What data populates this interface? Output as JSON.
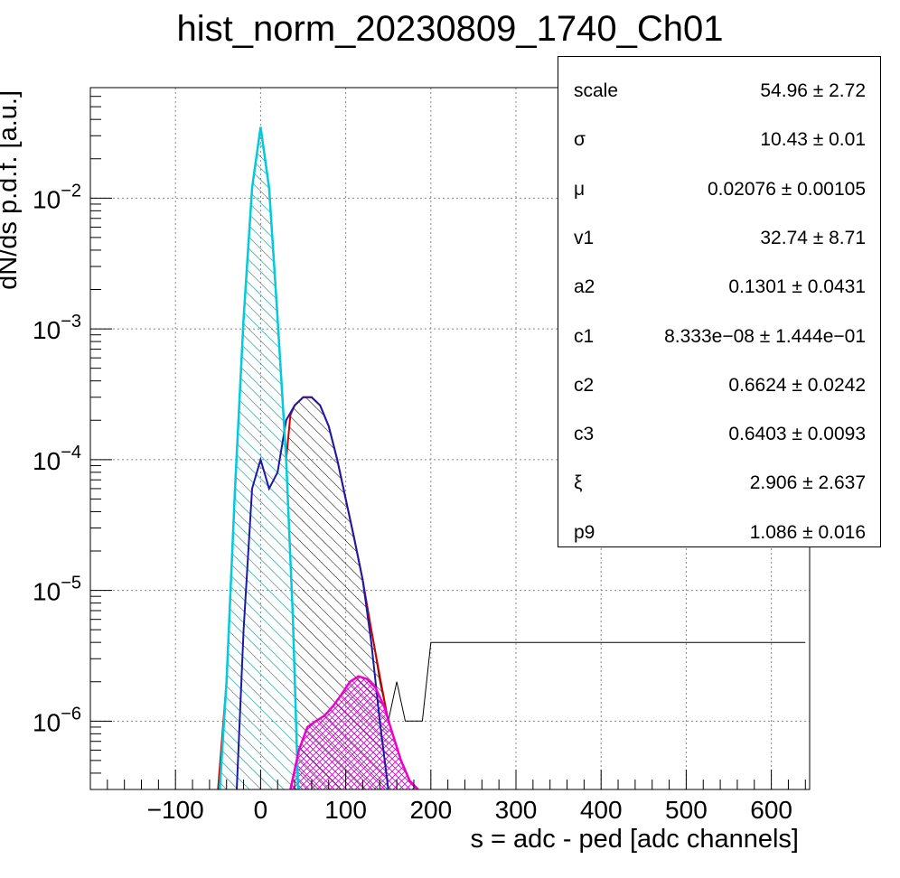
{
  "chart_data": {
    "type": "histogram",
    "title": "hist_norm_20230809_1740_Ch01",
    "xlabel": "s = adc - ped [adc channels]",
    "ylabel": "dN/ds p.d.f. [a.u.]",
    "xlim": [
      -200,
      645
    ],
    "ylim": [
      3e-07,
      0.07
    ],
    "y_scale": "log",
    "grid": true,
    "x_ticks": [
      -100,
      0,
      100,
      200,
      300,
      400,
      500,
      600
    ],
    "x_tick_labels": [
      "−100",
      "0",
      "100",
      "200",
      "300",
      "400",
      "500",
      "600"
    ],
    "y_ticks": [
      1e-06,
      1e-05,
      0.0001,
      0.001,
      0.01
    ],
    "y_tick_labels": [
      {
        "base": "10",
        "exp": "−6"
      },
      {
        "base": "10",
        "exp": "−5"
      },
      {
        "base": "10",
        "exp": "−4"
      },
      {
        "base": "10",
        "exp": "−3"
      },
      {
        "base": "10",
        "exp": "−2"
      }
    ],
    "series": [
      {
        "color": "#000000",
        "style": "histogram",
        "x": [
          -50,
          -40,
          -30,
          -20,
          -10,
          0,
          10,
          20,
          30,
          35,
          40,
          50,
          60,
          70,
          80,
          90,
          100,
          110,
          120,
          130,
          140,
          150,
          160,
          170,
          180,
          190,
          200,
          250,
          300,
          350,
          400,
          500,
          600,
          640
        ],
        "y": [
          3e-07,
          2e-06,
          6e-05,
          0.0012,
          0.012,
          0.035,
          0.012,
          0.0012,
          0.0001,
          0.00022,
          0.00026,
          0.0003,
          0.0003,
          0.00026,
          0.00018,
          0.0001,
          5e-05,
          2.5e-05,
          1.2e-05,
          5e-06,
          2e-06,
          1e-06,
          2e-06,
          1e-06,
          1e-06,
          1e-06,
          4e-06,
          4e-06,
          4e-06,
          4e-06,
          4e-06,
          4e-06,
          4e-06,
          4e-06
        ]
      },
      {
        "color": "#cc0000",
        "style": "fit-total",
        "x": [
          -50,
          -40,
          -30,
          -20,
          -10,
          0,
          10,
          20,
          30,
          35,
          40,
          50,
          60,
          70,
          80,
          90,
          100,
          110,
          120,
          130,
          140,
          150
        ],
        "y": [
          3e-07,
          2e-06,
          6e-05,
          0.0012,
          0.012,
          0.035,
          0.012,
          0.0012,
          0.0001,
          0.00022,
          0.00026,
          0.0003,
          0.0003,
          0.00026,
          0.00018,
          0.0001,
          5e-05,
          2.5e-05,
          1.2e-05,
          5e-06,
          2.2e-06,
          1e-06
        ]
      },
      {
        "color": "#00ccdd",
        "style": "pedestal-component",
        "x": [
          -48,
          -40,
          -30,
          -20,
          -10,
          0,
          10,
          20,
          30,
          38,
          44
        ],
        "y": [
          3e-07,
          2e-06,
          6e-05,
          0.0012,
          0.012,
          0.035,
          0.012,
          0.0012,
          0.0001,
          6e-06,
          3e-07
        ]
      },
      {
        "color": "#1a1aaa",
        "style": "single-pe-component",
        "x": [
          -28,
          -20,
          -10,
          0,
          10,
          20,
          30,
          40,
          50,
          60,
          70,
          80,
          90,
          100,
          110,
          120,
          130,
          140,
          150
        ],
        "y": [
          3e-07,
          5e-06,
          6e-05,
          0.0001,
          6e-05,
          8e-05,
          0.0002,
          0.00026,
          0.0003,
          0.0003,
          0.00026,
          0.00018,
          0.0001,
          5e-05,
          2.5e-05,
          1.2e-05,
          4e-06,
          1e-06,
          3e-07
        ]
      },
      {
        "color": "#ee00cc",
        "style": "double-pe-component",
        "x": [
          35,
          45,
          55,
          65,
          75,
          85,
          95,
          105,
          115,
          125,
          135,
          145,
          155,
          165,
          175,
          185
        ],
        "y": [
          3e-07,
          6e-07,
          9e-07,
          1e-06,
          1.1e-06,
          1.3e-06,
          1.6e-06,
          2e-06,
          2.2e-06,
          2.1e-06,
          1.8e-06,
          1.3e-06,
          8e-07,
          5e-07,
          3.5e-07,
          3e-07
        ]
      }
    ],
    "stats_box": [
      {
        "name": "scale",
        "value": "54.96 ± 2.72"
      },
      {
        "name": "σ",
        "value": "10.43 ± 0.01"
      },
      {
        "name": "μ",
        "value": "0.02076 ± 0.00105"
      },
      {
        "name": "v1",
        "value": "32.74 ± 8.71"
      },
      {
        "name": "a2",
        "value": "0.1301 ± 0.0431"
      },
      {
        "name": "c1",
        "value": "8.333e−08 ± 1.444e−01"
      },
      {
        "name": "c2",
        "value": "0.6624 ± 0.0242"
      },
      {
        "name": "c3",
        "value": "0.6403 ± 0.0093"
      },
      {
        "name": "ξ",
        "value": "2.906 ± 2.637"
      },
      {
        "name": "p9",
        "value": "1.086 ± 0.016"
      }
    ]
  }
}
